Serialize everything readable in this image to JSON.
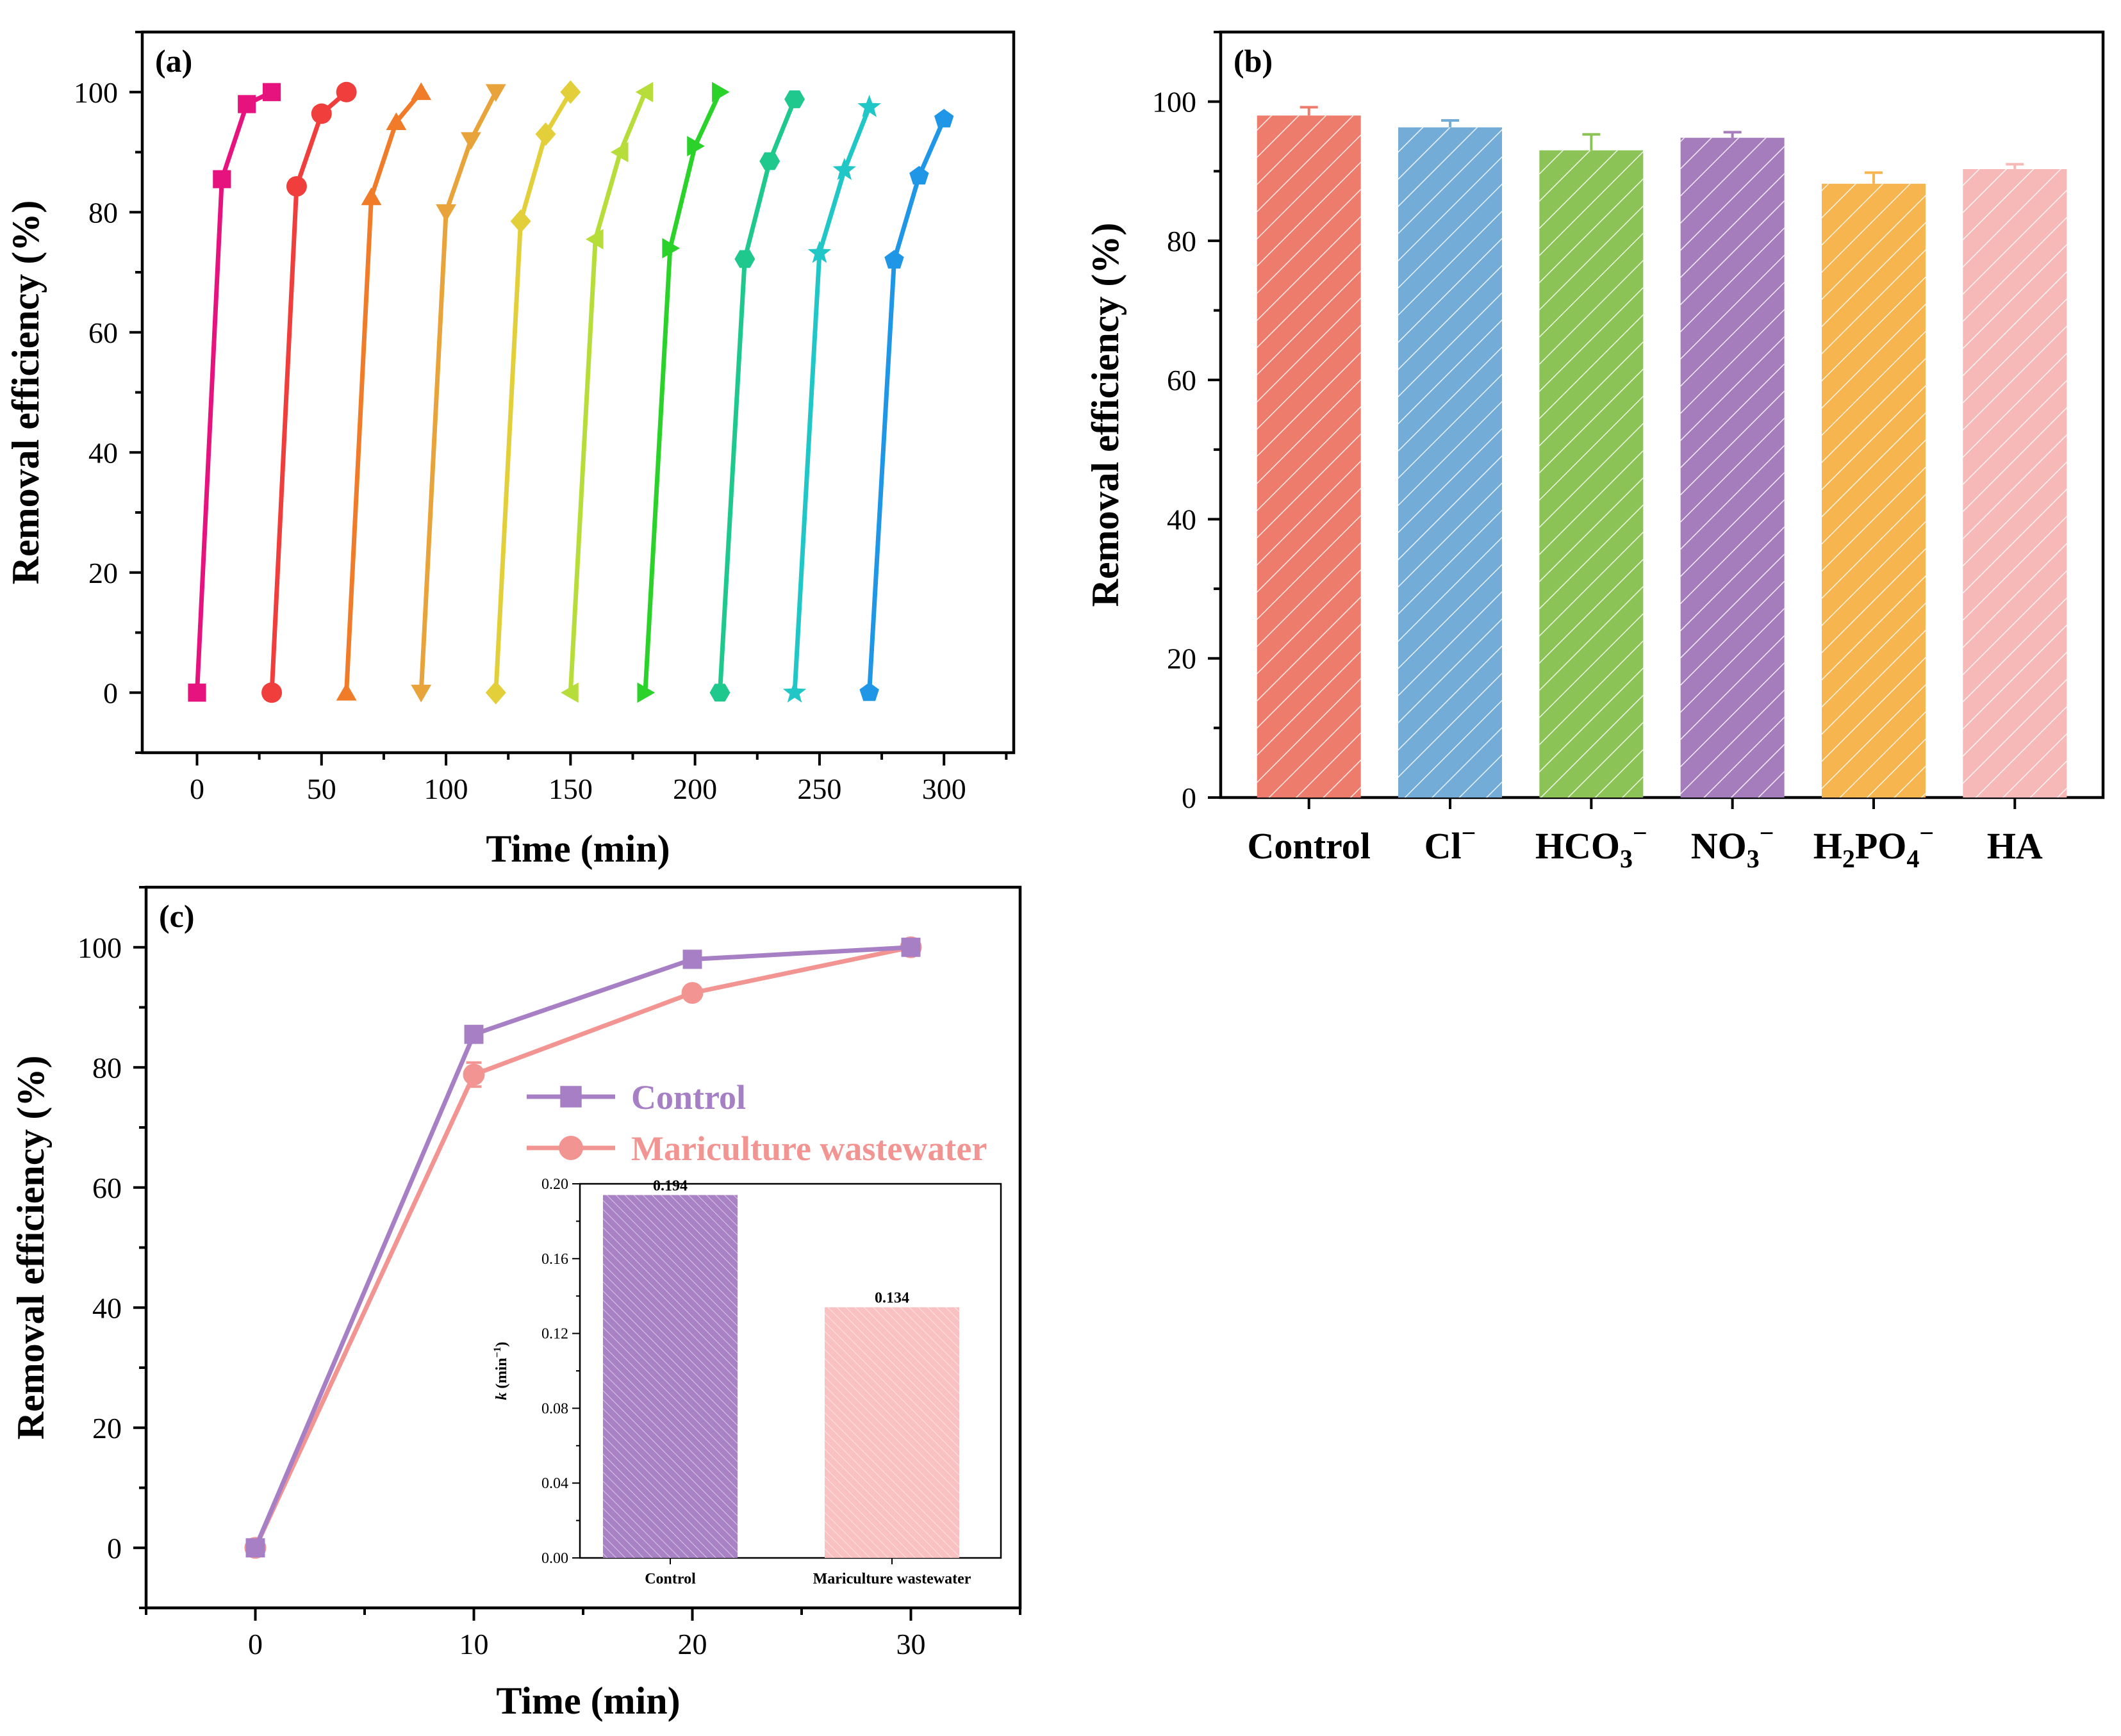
{
  "chart_data": [
    {
      "panel": "(a)",
      "type": "line",
      "xlabel": "Time (min)",
      "ylabel": "Removal efficiency (%)",
      "xlim": [
        -22,
        328
      ],
      "ylim": [
        -10,
        110
      ],
      "xticks": [
        0,
        50,
        100,
        150,
        200,
        250,
        300
      ],
      "yticks": [
        0,
        20,
        40,
        60,
        80,
        100
      ],
      "series": [
        {
          "cycle": 1,
          "color": "#e6137f",
          "marker": "square",
          "x": [
            0,
            10,
            20,
            30
          ],
          "y": [
            0,
            85.5,
            98,
            100
          ]
        },
        {
          "cycle": 2,
          "color": "#ef3e3c",
          "marker": "circle",
          "x": [
            30,
            40,
            50,
            60
          ],
          "y": [
            0,
            84.3,
            96.4,
            100
          ]
        },
        {
          "cycle": 3,
          "color": "#f07c2a",
          "marker": "triangle-up",
          "x": [
            60,
            70,
            80,
            90
          ],
          "y": [
            0,
            82.5,
            95,
            100
          ]
        },
        {
          "cycle": 4,
          "color": "#e8a33a",
          "marker": "triangle-down",
          "x": [
            90,
            100,
            110,
            120
          ],
          "y": [
            0,
            80,
            92,
            100
          ]
        },
        {
          "cycle": 5,
          "color": "#e3cf3a",
          "marker": "diamond",
          "x": [
            120,
            130,
            140,
            150
          ],
          "y": [
            0,
            78.5,
            93,
            100
          ]
        },
        {
          "cycle": 6,
          "color": "#b7dd3a",
          "marker": "triangle-left",
          "x": [
            150,
            160,
            170,
            180
          ],
          "y": [
            0,
            75.5,
            90,
            100
          ]
        },
        {
          "cycle": 7,
          "color": "#2ad22a",
          "marker": "triangle-right",
          "x": [
            180,
            190,
            200,
            210
          ],
          "y": [
            0,
            74,
            91,
            100
          ]
        },
        {
          "cycle": 8,
          "color": "#1fc98d",
          "marker": "hexagon",
          "x": [
            210,
            220,
            230,
            240
          ],
          "y": [
            0,
            72.2,
            88.5,
            98.8
          ]
        },
        {
          "cycle": 9,
          "color": "#21c7c7",
          "marker": "star",
          "x": [
            240,
            250,
            260,
            270
          ],
          "y": [
            0,
            73.2,
            87,
            97.5
          ]
        },
        {
          "cycle": 10,
          "color": "#1f96e6",
          "marker": "pentagon",
          "x": [
            270,
            280,
            290,
            300
          ],
          "y": [
            0,
            72,
            86,
            95.5
          ]
        }
      ]
    },
    {
      "panel": "(b)",
      "type": "bar",
      "ylabel": "Removal efficiency (%)",
      "ylim": [
        0,
        110
      ],
      "yticks": [
        0,
        20,
        40,
        60,
        80,
        100
      ],
      "categories": [
        "Control",
        "Cl",
        "HCO3",
        "NO3",
        "H2PO4",
        "HA"
      ],
      "category_labels": [
        {
          "main": "Control",
          "sub": "",
          "sup": ""
        },
        {
          "main": "Cl",
          "sub": "",
          "sup": "−"
        },
        {
          "main": "HCO",
          "sub": "3",
          "sup": "−"
        },
        {
          "main": "NO",
          "sub": "3",
          "sup": "−"
        },
        {
          "main": "H",
          "sub": "2",
          "main2": "PO",
          "sub2": "4",
          "sup": "−"
        },
        {
          "main": "HA",
          "sub": "",
          "sup": ""
        }
      ],
      "values": [
        98,
        96.3,
        93,
        94.8,
        88.2,
        90.3
      ],
      "errors": [
        1.2,
        1.0,
        2.3,
        0.8,
        1.6,
        0.7
      ],
      "colors": [
        "#ee7c6c",
        "#74acd8",
        "#8cc356",
        "#a57dbd",
        "#f7b54f",
        "#f7b9b8"
      ]
    },
    {
      "panel": "(c)",
      "type": "line",
      "xlabel": "Time (min)",
      "ylabel": "Removal efficiency (%)",
      "xlim": [
        -5,
        35
      ],
      "ylim": [
        -10,
        110
      ],
      "xticks": [
        0,
        10,
        20,
        30
      ],
      "yticks": [
        0,
        20,
        40,
        60,
        80,
        100
      ],
      "x": [
        0,
        10,
        20,
        30
      ],
      "series": [
        {
          "name": "Control",
          "color": "#a77fc4",
          "marker": "square",
          "values": [
            0,
            85.5,
            98,
            100
          ],
          "errors": [
            0,
            1.0,
            0.8,
            0.5
          ]
        },
        {
          "name": "Mariculture wastewater",
          "color": "#f29592",
          "marker": "circle",
          "values": [
            0,
            78.8,
            92.4,
            100
          ],
          "errors": [
            0,
            2.0,
            1.0,
            0.5
          ]
        }
      ],
      "inset": {
        "type": "bar",
        "ylabel": "k (min⁻¹)",
        "ylabel_parts": {
          "italic": "k",
          "unit": " (min",
          "sup": "−1",
          "close": ")"
        },
        "ylim": [
          0,
          0.2
        ],
        "yticks": [
          "0.00",
          "0.04",
          "0.08",
          "0.12",
          "0.16",
          "0.20"
        ],
        "categories": [
          "Control",
          "Mariculture wastewater"
        ],
        "values": [
          0.194,
          0.134
        ],
        "value_labels": [
          "0.194",
          "0.134"
        ],
        "colors": [
          "#a882c4",
          "#f9c1c1"
        ]
      }
    }
  ]
}
